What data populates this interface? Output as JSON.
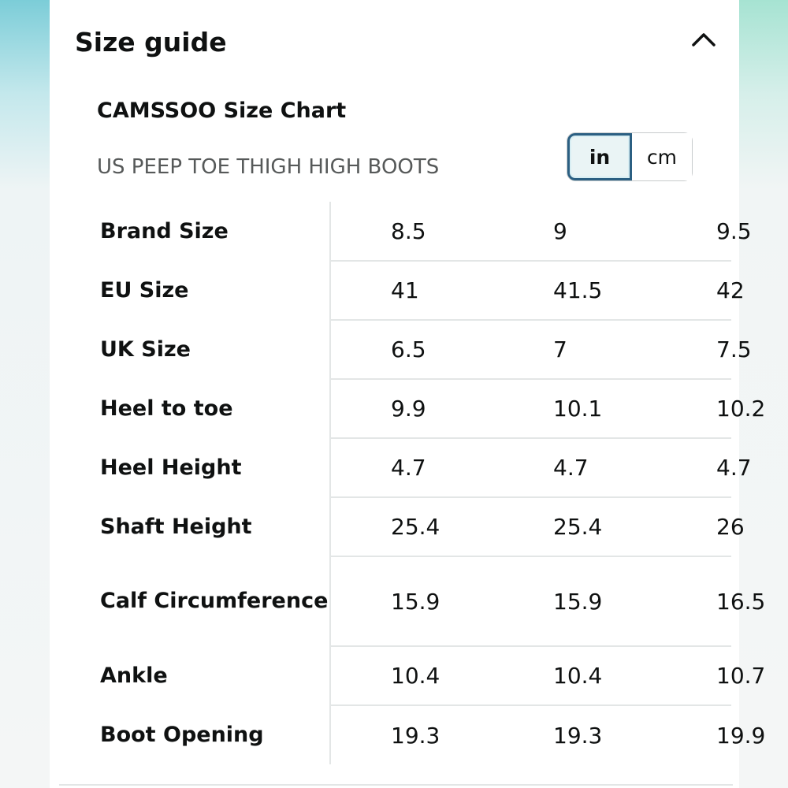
{
  "guide": {
    "title": "Size guide",
    "collapse_icon": "chevron-up-icon",
    "chart_name": "CAMSSOO Size Chart",
    "subtitle": "US PEEP TOE THIGH HIGH BOOTS",
    "units": {
      "options": [
        "in",
        "cm"
      ],
      "selected": "in"
    },
    "table": {
      "rows": [
        {
          "label": "Brand Size",
          "values": [
            "8.5",
            "9",
            "9.5"
          ]
        },
        {
          "label": "EU Size",
          "values": [
            "41",
            "41.5",
            "42"
          ]
        },
        {
          "label": "UK Size",
          "values": [
            "6.5",
            "7",
            "7.5"
          ]
        },
        {
          "label": "Heel to toe",
          "values": [
            "9.9",
            "10.1",
            "10.2"
          ]
        },
        {
          "label": "Heel Height",
          "values": [
            "4.7",
            "4.7",
            "4.7"
          ]
        },
        {
          "label": "Shaft Height",
          "values": [
            "25.4",
            "25.4",
            "26"
          ]
        },
        {
          "label": "Calf Circumference",
          "values": [
            "15.9",
            "15.9",
            "16.5"
          ]
        },
        {
          "label": "Ankle",
          "values": [
            "10.4",
            "10.4",
            "10.7"
          ]
        },
        {
          "label": "Boot Opening",
          "values": [
            "19.3",
            "19.3",
            "19.9"
          ]
        }
      ]
    },
    "colors": {
      "selected_border": "#2b5f82",
      "selected_fill": "#eaf4f5",
      "text": "#0f1111",
      "muted_text": "#565959",
      "divider": "#e3e6e6"
    }
  }
}
